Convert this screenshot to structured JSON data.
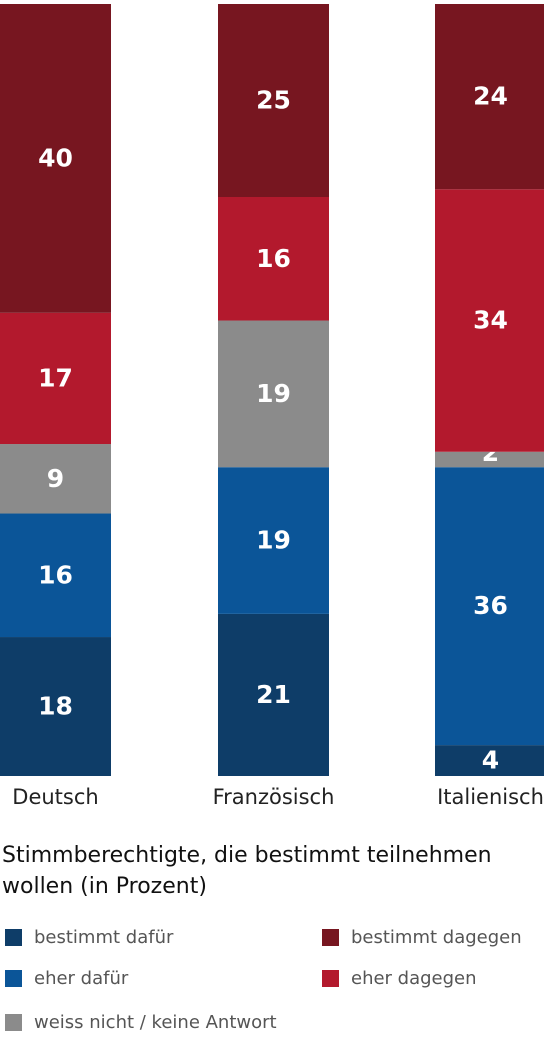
{
  "chart_data": {
    "type": "stacked-bar",
    "title": "Stimmberechtigte, die bestimmt teilnehmen wollen (in Prozent)",
    "categories": [
      "Deutsch",
      "Französisch",
      "Italienisch"
    ],
    "series": [
      {
        "name": "bestimmt dafür",
        "color": "#0e3d68",
        "values": [
          18,
          21,
          4
        ]
      },
      {
        "name": "eher dafür",
        "color": "#0b5598",
        "values": [
          16,
          19,
          36
        ]
      },
      {
        "name": "weiss nicht / keine Antwort",
        "color": "#8b8b8b",
        "values": [
          9,
          19,
          2
        ]
      },
      {
        "name": "eher dagegen",
        "color": "#b3192d",
        "values": [
          17,
          16,
          34
        ]
      },
      {
        "name": "bestimmt dagegen",
        "color": "#771620",
        "values": [
          40,
          25,
          24
        ]
      }
    ]
  }
}
